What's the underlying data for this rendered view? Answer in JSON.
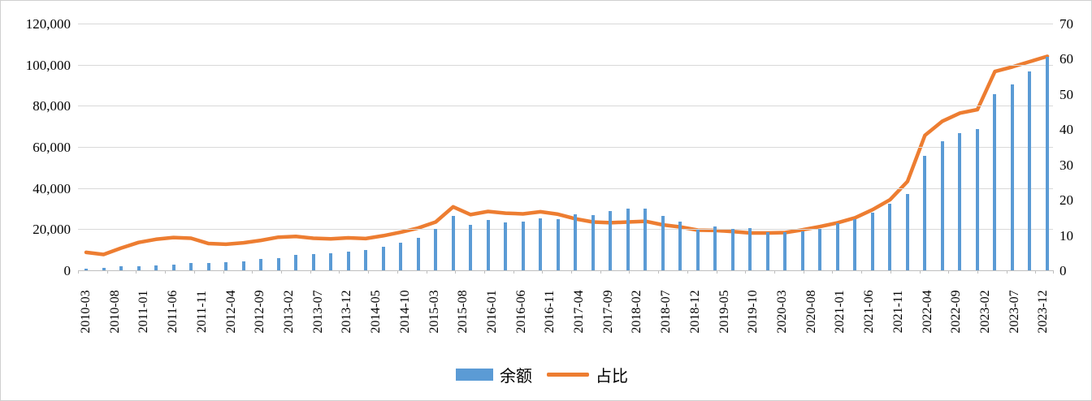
{
  "chart_data": {
    "type": "bar",
    "subtype": "bar+line dual axis",
    "title": "",
    "x": [
      "2010-03",
      "2010-06",
      "2010-09",
      "2010-12",
      "2011-03",
      "2011-06",
      "2011-09",
      "2011-12",
      "2012-03",
      "2012-06",
      "2012-09",
      "2012-12",
      "2013-03",
      "2013-06",
      "2013-09",
      "2013-12",
      "2014-03",
      "2014-06",
      "2014-09",
      "2014-12",
      "2015-03",
      "2015-06",
      "2015-09",
      "2015-12",
      "2016-03",
      "2016-06",
      "2016-09",
      "2016-12",
      "2017-03",
      "2017-06",
      "2017-09",
      "2017-12",
      "2018-03",
      "2018-06",
      "2018-09",
      "2018-12",
      "2019-03",
      "2019-06",
      "2019-09",
      "2019-12",
      "2020-03",
      "2020-06",
      "2020-09",
      "2020-12",
      "2021-03",
      "2021-06",
      "2021-09",
      "2021-12",
      "2022-03",
      "2022-06",
      "2022-09",
      "2022-12",
      "2023-03",
      "2023-06",
      "2023-09",
      "2023-12"
    ],
    "series": [
      {
        "name": "余额",
        "type": "bar",
        "axis": "left",
        "color": "#5B9BD5",
        "values": [
          900,
          1100,
          1900,
          2100,
          2400,
          2800,
          3600,
          3600,
          4100,
          4500,
          5400,
          6100,
          7600,
          7900,
          8200,
          9000,
          9900,
          11400,
          13400,
          15600,
          20000,
          26500,
          22300,
          24300,
          23400,
          23600,
          25300,
          24900,
          27300,
          27000,
          28900,
          30200,
          29900,
          26600,
          23700,
          19800,
          21300,
          20300,
          20500,
          18600,
          18500,
          18900,
          20100,
          23000,
          24900,
          27900,
          32300,
          37300,
          55600,
          62600,
          66800,
          68700,
          85500,
          90400,
          96800,
          104000
        ]
      },
      {
        "name": "占比",
        "type": "line",
        "axis": "right",
        "color": "#ED7D31",
        "values": [
          5.1,
          4.5,
          6.3,
          7.9,
          8.8,
          9.3,
          9.1,
          7.6,
          7.4,
          7.8,
          8.5,
          9.4,
          9.6,
          9.1,
          8.9,
          9.2,
          9.0,
          9.8,
          10.8,
          12.0,
          13.7,
          18.0,
          15.8,
          16.7,
          16.2,
          16.0,
          16.6,
          15.9,
          14.6,
          13.7,
          13.5,
          13.7,
          13.9,
          12.9,
          12.3,
          11.4,
          11.3,
          11.0,
          10.6,
          10.6,
          10.7,
          11.5,
          12.4,
          13.5,
          14.9,
          17.2,
          20.0,
          25.2,
          38.3,
          42.3,
          44.6,
          45.6,
          56.4,
          57.7,
          59.2,
          60.7
        ]
      }
    ],
    "left_axis": {
      "min": 0,
      "max": 120000,
      "step": 20000,
      "tick_labels": [
        "0",
        "20,000",
        "40,000",
        "60,000",
        "80,000",
        "100,000",
        "120,000"
      ]
    },
    "right_axis": {
      "min": 0,
      "max": 70,
      "step": 10,
      "tick_labels": [
        "0",
        "10",
        "20",
        "30",
        "40",
        "50",
        "60",
        "70"
      ]
    },
    "x_tick_labels": [
      "2010-03",
      "2010-08",
      "2011-01",
      "2011-06",
      "2011-11",
      "2012-04",
      "2012-09",
      "2013-02",
      "2013-07",
      "2013-12",
      "2014-05",
      "2014-10",
      "2015-03",
      "2015-08",
      "2016-01",
      "2016-06",
      "2016-11",
      "2017-04",
      "2017-09",
      "2018-02",
      "2018-07",
      "2018-12",
      "2019-05",
      "2019-10",
      "2020-03",
      "2020-08",
      "2021-01",
      "2021-06",
      "2021-11",
      "2022-04",
      "2022-09",
      "2023-02",
      "2023-07",
      "2023-12"
    ],
    "grid": true,
    "legend_position": "bottom"
  },
  "legend": {
    "balance_label": "余额",
    "ratio_label": "占比"
  },
  "colors": {
    "bar": "#5B9BD5",
    "line": "#ED7D31",
    "gridline": "#D9D9D9",
    "axis": "#BFBFBF",
    "text": "#000000"
  }
}
